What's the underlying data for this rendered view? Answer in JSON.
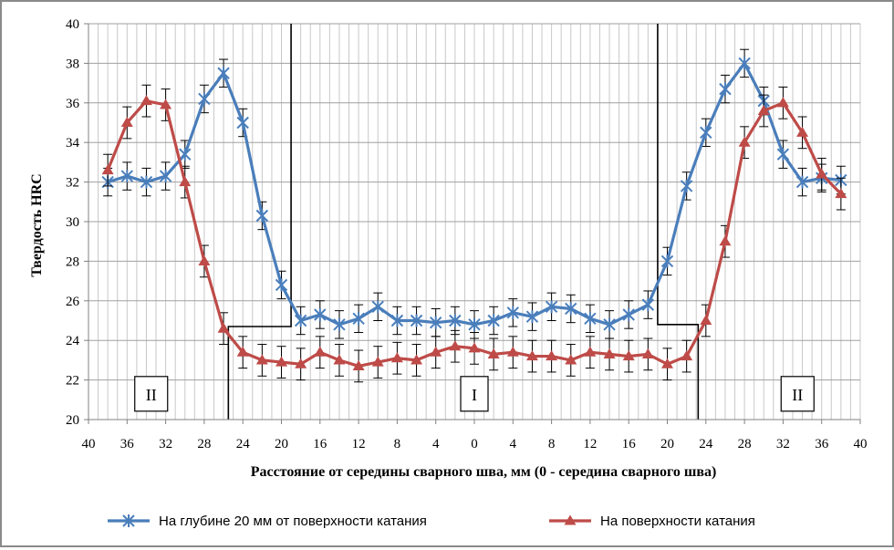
{
  "chart_data": {
    "type": "line",
    "xlabel": "Расстояние от середины сварного шва, мм (0 - середина сварного шва)",
    "ylabel": "Твердость HRC",
    "xlim": [
      -40,
      40
    ],
    "ylim": [
      20,
      40
    ],
    "grid": true,
    "legend_position": "bottom",
    "x_tick_values": [
      -40,
      -36,
      -32,
      -28,
      -24,
      -20,
      -16,
      -12,
      -8,
      -4,
      0,
      4,
      8,
      12,
      16,
      20,
      24,
      28,
      32,
      36,
      40
    ],
    "x_tick_labels": [
      "40",
      "36",
      "32",
      "28",
      "24",
      "20",
      "16",
      "12",
      "8",
      "4",
      "0",
      "4",
      "8",
      "12",
      "16",
      "20",
      "24",
      "28",
      "32",
      "36",
      "40"
    ],
    "y_ticks": [
      "20",
      "22",
      "24",
      "26",
      "28",
      "30",
      "32",
      "34",
      "36",
      "38",
      "40"
    ],
    "x": [
      -38,
      -36,
      -34,
      -32,
      -30,
      -28,
      -26,
      -24,
      -22,
      -20,
      -18,
      -16,
      -14,
      -12,
      -10,
      -8,
      -6,
      -4,
      -2,
      0,
      2,
      4,
      6,
      8,
      10,
      12,
      14,
      16,
      18,
      20,
      22,
      24,
      26,
      28,
      30,
      32,
      34,
      36,
      38
    ],
    "series": [
      {
        "name": "На глубине 20 мм от поверхности катания",
        "color": "#4a7ebb",
        "marker": "asterisk",
        "values": [
          32.0,
          32.3,
          32.0,
          32.3,
          33.4,
          36.2,
          37.5,
          35.0,
          30.3,
          26.8,
          25.0,
          25.3,
          24.8,
          25.1,
          25.7,
          25.0,
          25.0,
          24.9,
          25.0,
          24.8,
          25.0,
          25.4,
          25.2,
          25.7,
          25.6,
          25.1,
          24.8,
          25.3,
          25.8,
          28.0,
          31.8,
          34.5,
          36.7,
          38.0,
          36.1,
          33.4,
          32.0,
          32.2,
          32.1
        ],
        "errors": [
          0.7,
          0.7,
          0.7,
          0.7,
          0.7,
          0.7,
          0.7,
          0.7,
          0.7,
          0.7,
          0.7,
          0.7,
          0.7,
          0.7,
          0.7,
          0.7,
          0.7,
          0.7,
          0.7,
          0.7,
          0.7,
          0.7,
          0.7,
          0.7,
          0.7,
          0.7,
          0.7,
          0.7,
          0.7,
          0.7,
          0.7,
          0.7,
          0.7,
          0.7,
          0.7,
          0.7,
          0.7,
          0.7,
          0.7
        ]
      },
      {
        "name": "На поверхности катания",
        "color": "#be4b48",
        "marker": "triangle",
        "values": [
          32.6,
          35.0,
          36.1,
          35.9,
          32.0,
          28.0,
          24.6,
          23.4,
          23.0,
          22.9,
          22.8,
          23.4,
          23.0,
          22.7,
          22.9,
          23.1,
          23.0,
          23.4,
          23.7,
          23.6,
          23.3,
          23.4,
          23.2,
          23.2,
          23.0,
          23.4,
          23.3,
          23.2,
          23.3,
          22.8,
          23.2,
          25.0,
          29.0,
          34.0,
          35.6,
          36.0,
          34.5,
          32.4,
          31.4
        ],
        "errors": [
          0.8,
          0.8,
          0.8,
          0.8,
          0.8,
          0.8,
          0.8,
          0.8,
          0.8,
          0.8,
          0.8,
          0.8,
          0.8,
          0.8,
          0.8,
          0.8,
          0.8,
          0.8,
          0.8,
          0.8,
          0.8,
          0.8,
          0.8,
          0.8,
          0.8,
          0.8,
          0.8,
          0.8,
          0.8,
          0.8,
          0.8,
          0.8,
          0.8,
          0.8,
          0.8,
          0.8,
          0.8,
          0.8,
          0.8
        ]
      }
    ],
    "zones": [
      {
        "label": "II",
        "x": -33.5,
        "y": 21.3
      },
      {
        "label": "I",
        "x": 0,
        "y": 21.3
      },
      {
        "label": "II",
        "x": 33.5,
        "y": 21.3
      }
    ],
    "zone_boundaries": [
      {
        "points": [
          [
            -25.5,
            20
          ],
          [
            -25.5,
            24.7
          ],
          [
            -19,
            24.7
          ],
          [
            -19,
            40
          ]
        ]
      },
      {
        "points": [
          [
            19,
            40
          ],
          [
            19,
            24.8
          ],
          [
            23.2,
            24.8
          ],
          [
            23.2,
            20
          ]
        ]
      }
    ]
  }
}
